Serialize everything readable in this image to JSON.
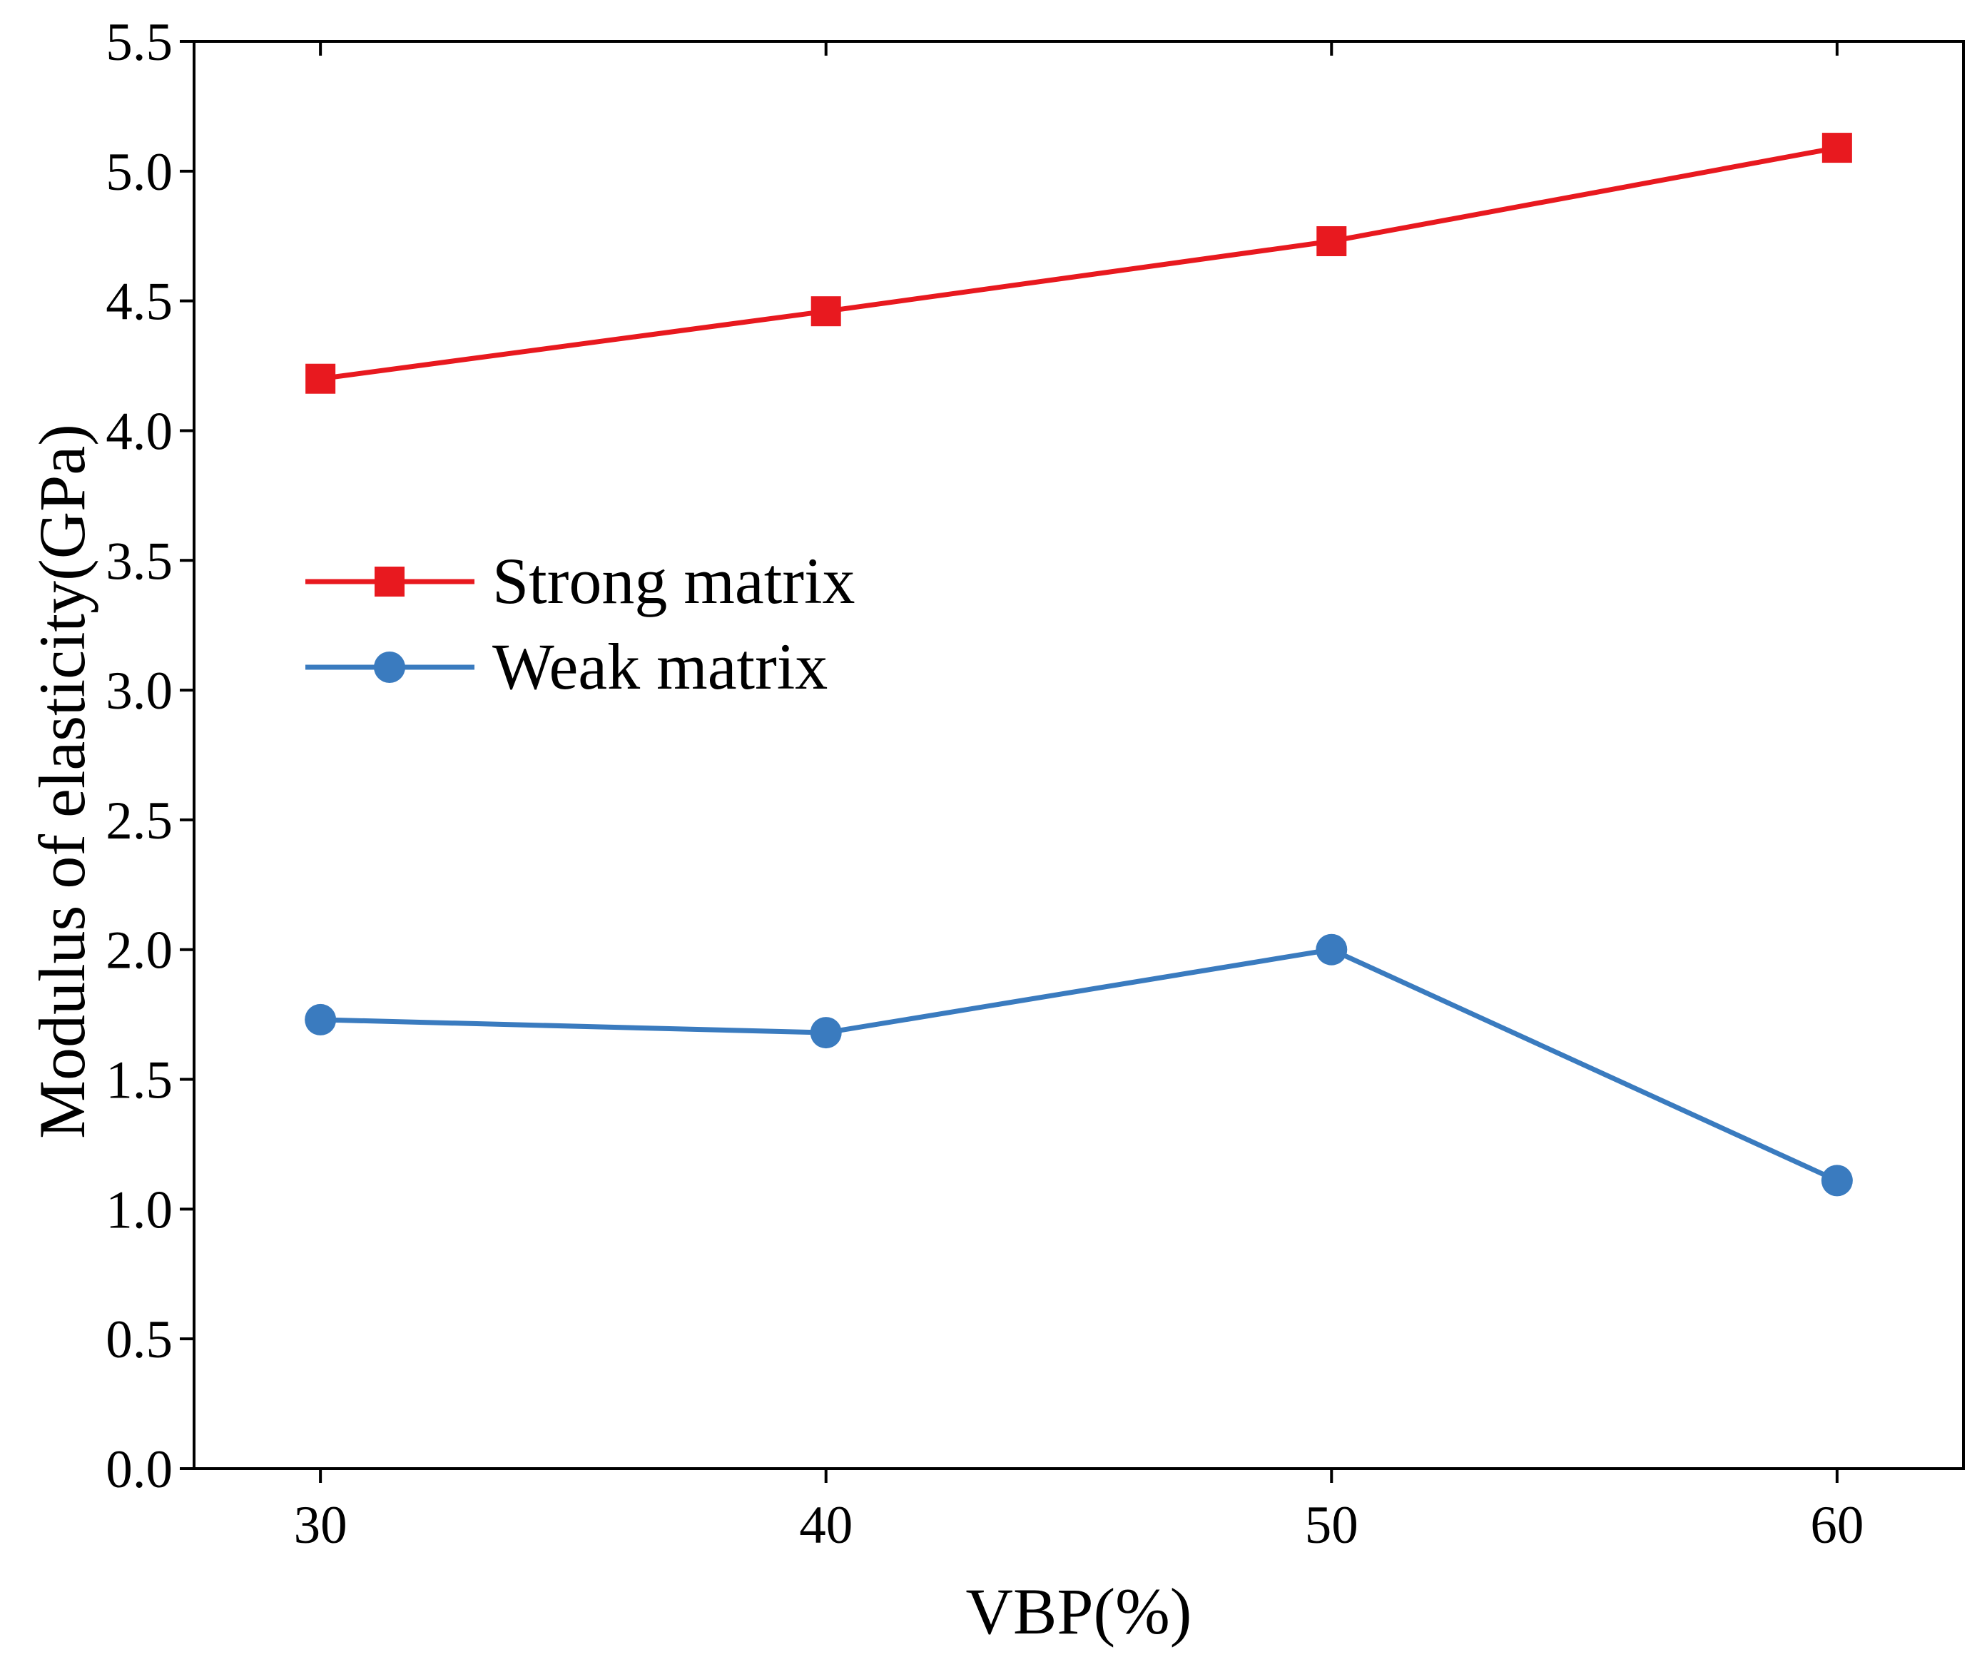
{
  "chart_data": {
    "type": "line",
    "title": "",
    "xlabel": "VBP(%)",
    "ylabel": "Modulus of elasticity(GPa)",
    "xlim": [
      27.5,
      62.5
    ],
    "ylim": [
      0.0,
      5.5
    ],
    "x": [
      30,
      40,
      50,
      60
    ],
    "xticks": [
      30,
      40,
      50,
      60
    ],
    "xtick_labels": [
      "30",
      "40",
      "50",
      "60"
    ],
    "yticks": [
      0.0,
      0.5,
      1.0,
      1.5,
      2.0,
      2.5,
      3.0,
      3.5,
      4.0,
      4.5,
      5.0,
      5.5
    ],
    "ytick_labels": [
      "0.0",
      "0.5",
      "1.0",
      "1.5",
      "2.0",
      "2.5",
      "3.0",
      "3.5",
      "4.0",
      "4.5",
      "5.0",
      "5.5"
    ],
    "grid": false,
    "legend_position": "center-left",
    "series": [
      {
        "name": "Strong matrix",
        "color": "#e8191f",
        "marker": "square",
        "values": [
          4.2,
          4.46,
          4.73,
          5.09
        ]
      },
      {
        "name": "Weak matrix",
        "color": "#3a7bbf",
        "marker": "circle",
        "values": [
          1.73,
          1.68,
          2.0,
          1.11
        ]
      }
    ]
  }
}
